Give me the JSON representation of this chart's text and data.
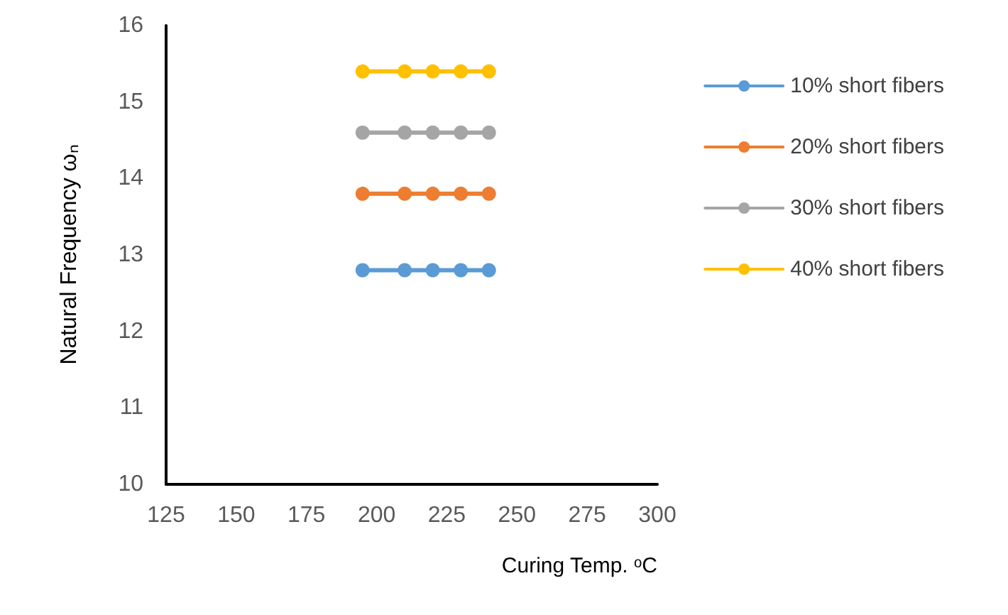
{
  "chart_data": {
    "type": "line",
    "xlabel": "Curing Temp. ᵒC",
    "ylabel": "Natural Frequency ωₙ",
    "x": [
      195,
      210,
      220,
      230,
      240
    ],
    "series": [
      {
        "name": "10% short fibers",
        "color": "#5b9bd5",
        "values": [
          12.8,
          12.8,
          12.8,
          12.8,
          12.8
        ]
      },
      {
        "name": "20% short fibers",
        "color": "#ed7d31",
        "values": [
          13.8,
          13.8,
          13.8,
          13.8,
          13.8
        ]
      },
      {
        "name": "30% short fibers",
        "color": "#a5a5a5",
        "values": [
          14.6,
          14.6,
          14.6,
          14.6,
          14.6
        ]
      },
      {
        "name": "40% short fibers",
        "color": "#ffc000",
        "values": [
          15.4,
          15.4,
          15.4,
          15.4,
          15.4
        ]
      }
    ],
    "xlim": [
      125,
      300
    ],
    "xticks": [
      125,
      150,
      175,
      200,
      225,
      250,
      275,
      300
    ],
    "ylim": [
      10,
      16
    ],
    "yticks": [
      10,
      11,
      12,
      13,
      14,
      15,
      16
    ],
    "grid": false,
    "legend": "right",
    "marker": "circle",
    "line_style": "solid"
  }
}
